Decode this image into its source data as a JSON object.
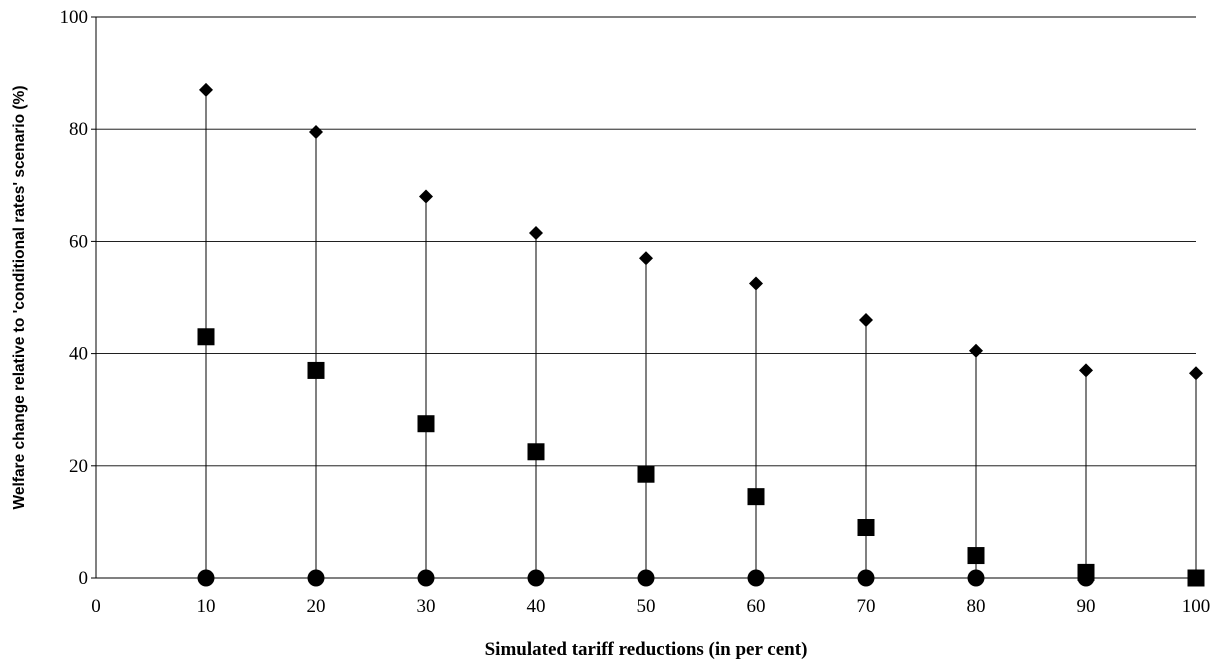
{
  "chart_data": {
    "type": "scatter",
    "title": "",
    "xlabel": "Simulated tariff reductions (in per cent)",
    "ylabel": "Welfare change relative to 'conditional rates' scenario (%)",
    "xlim": [
      0,
      100
    ],
    "ylim": [
      0,
      100
    ],
    "x_ticks": [
      "0",
      "10",
      "20",
      "30",
      "40",
      "50",
      "60",
      "70",
      "80",
      "90",
      "100"
    ],
    "y_ticks": [
      "0",
      "20",
      "40",
      "60",
      "80",
      "100"
    ],
    "grid": "horizontal",
    "legend": "none",
    "x": [
      10,
      20,
      30,
      40,
      50,
      60,
      70,
      80,
      90,
      100
    ],
    "series": [
      {
        "marker": "diamond",
        "values": [
          87,
          79.5,
          68,
          61.5,
          57,
          52.5,
          46,
          40.5,
          37,
          36.5
        ]
      },
      {
        "marker": "square",
        "values": [
          43,
          37,
          27.5,
          22.5,
          18.5,
          14.5,
          9,
          4,
          1,
          0
        ]
      },
      {
        "marker": "circle",
        "values": [
          0,
          0,
          0,
          0,
          0,
          0,
          0,
          0,
          0,
          0
        ]
      }
    ],
    "high_low_lines": true,
    "colors": {
      "marks": "#000000",
      "grid": "#000000",
      "background": "#ffffff"
    }
  }
}
